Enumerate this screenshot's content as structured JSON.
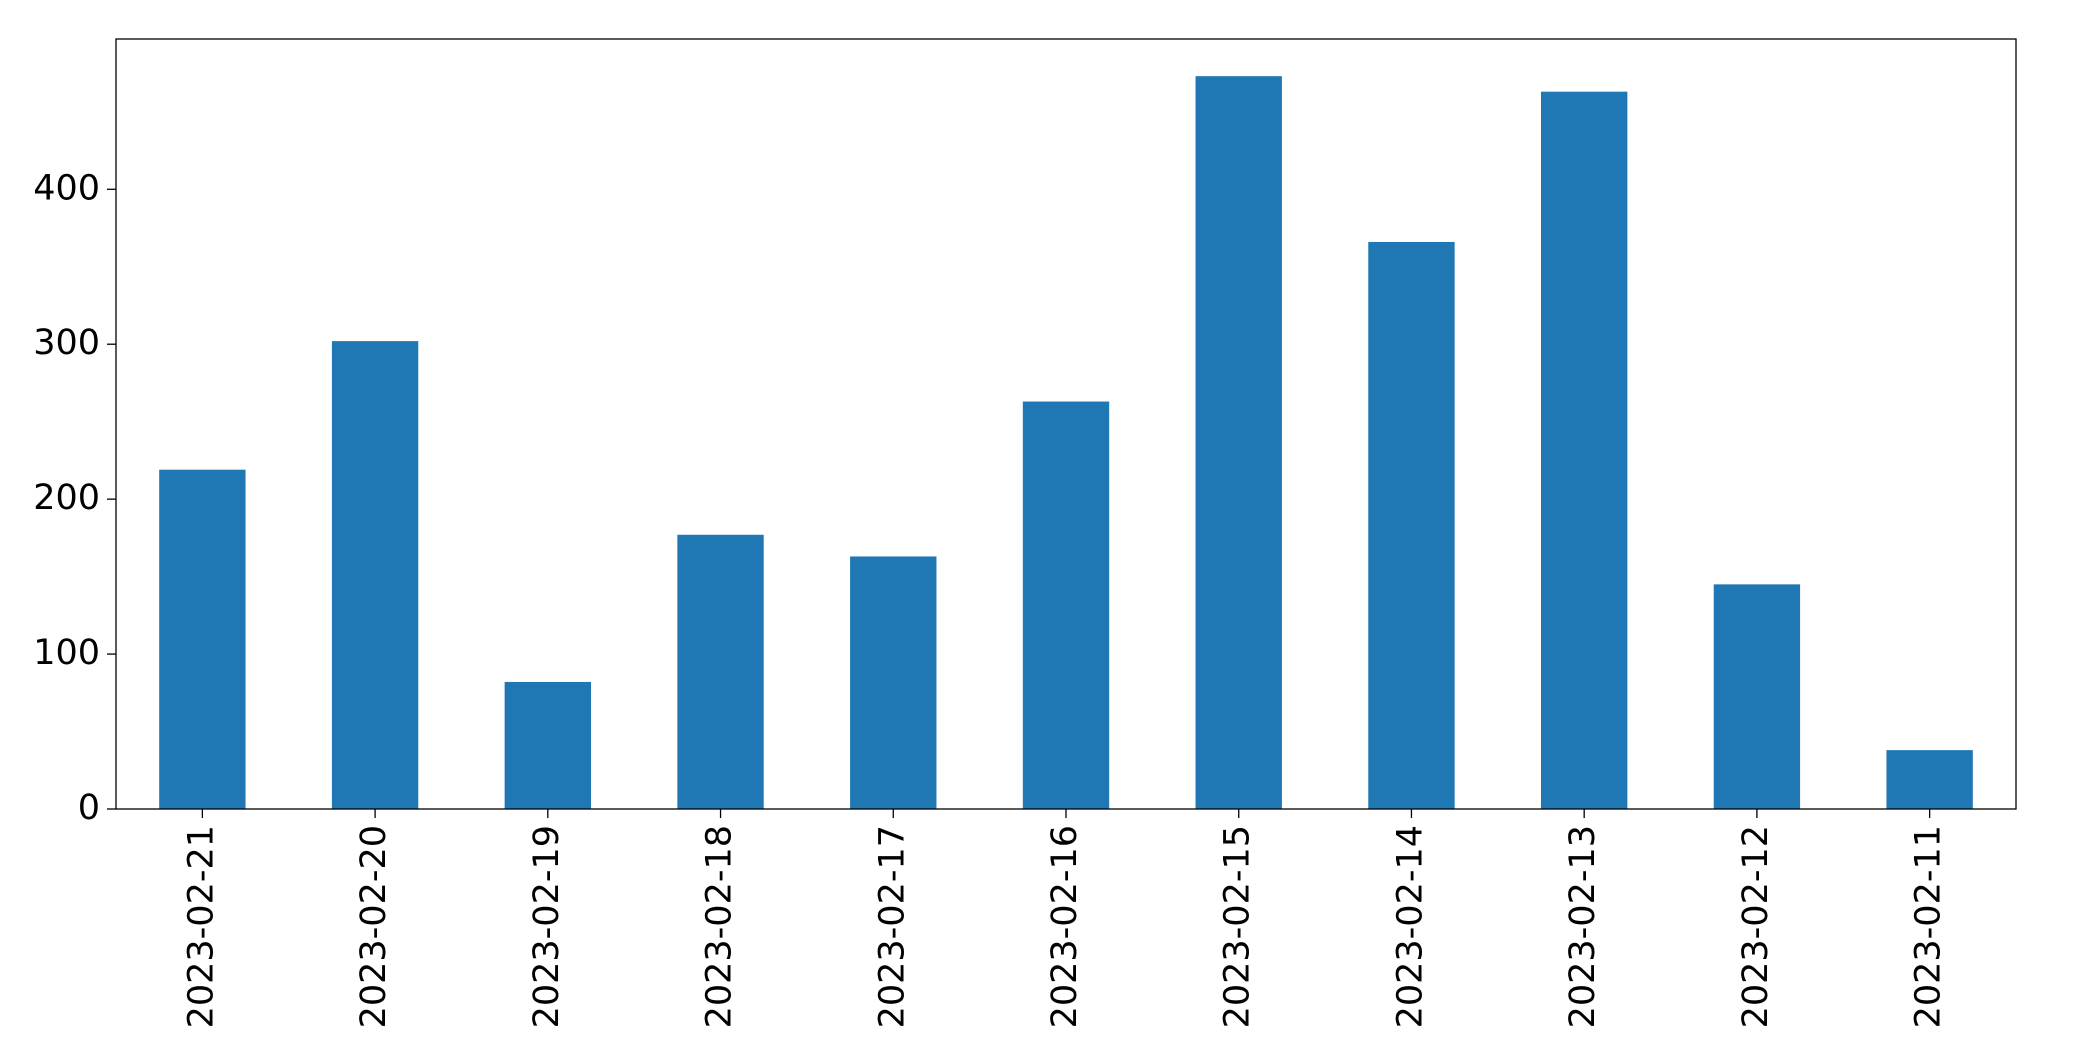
{
  "chart_data": {
    "type": "bar",
    "categories": [
      "2023-02-21",
      "2023-02-20",
      "2023-02-19",
      "2023-02-18",
      "2023-02-17",
      "2023-02-16",
      "2023-02-15",
      "2023-02-14",
      "2023-02-13",
      "2023-02-12",
      "2023-02-11"
    ],
    "values": [
      219,
      302,
      82,
      177,
      163,
      263,
      473,
      366,
      463,
      145,
      38
    ],
    "color": "#1f77b4",
    "ylim": [
      0,
      497
    ],
    "yticks": [
      0,
      100,
      200,
      300,
      400
    ],
    "grid": false
  }
}
